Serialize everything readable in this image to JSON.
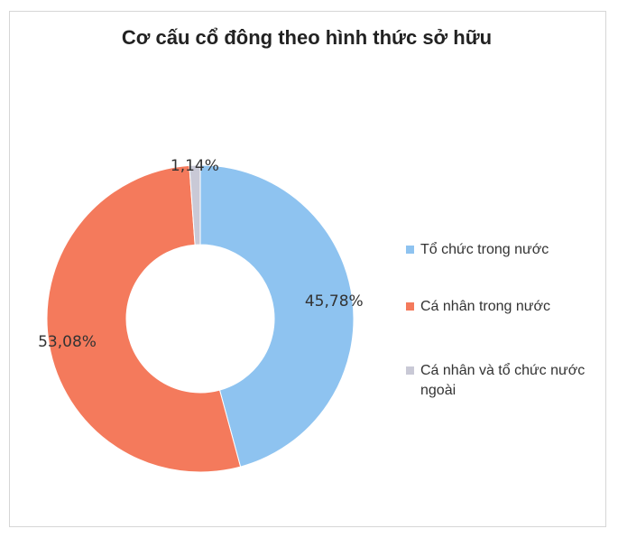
{
  "chart_data": {
    "type": "pie",
    "variant": "donut",
    "title": "Cơ cấu cổ đông theo hình thức sở hữu",
    "series": [
      {
        "name": "Tổ chức trong nước",
        "value": 45.78,
        "label": "45,78%",
        "color": "#8ec3f0"
      },
      {
        "name": "Cá nhân trong nước",
        "value": 53.08,
        "label": "53,08%",
        "color": "#f47a5c"
      },
      {
        "name": "Cá nhân và tổ chức nước ngoài",
        "value": 1.14,
        "label": "1,14%",
        "color": "#c9c9d6"
      }
    ],
    "legend_position": "right"
  }
}
